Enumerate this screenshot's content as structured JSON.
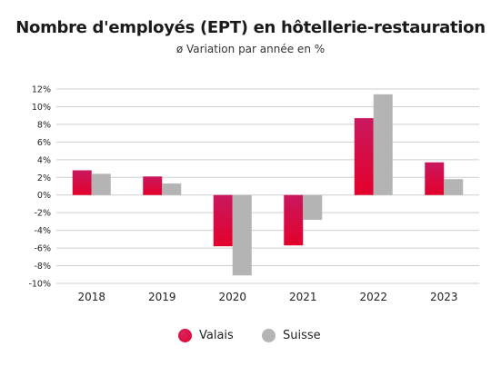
{
  "chart_data": {
    "type": "bar",
    "title": "Nombre d'employés (EPT) en hôtellerie-restauration",
    "subtitle": "ø Variation par année en %",
    "categories": [
      "2018",
      "2019",
      "2020",
      "2021",
      "2022",
      "2023"
    ],
    "series": [
      {
        "name": "Valais",
        "values": [
          2.8,
          2.1,
          -5.8,
          -5.7,
          8.7,
          3.7
        ],
        "color": "#e3002b"
      },
      {
        "name": "Suisse",
        "values": [
          2.4,
          1.3,
          -9.1,
          -2.8,
          11.4,
          1.8
        ],
        "color": "#b4b4b4"
      }
    ],
    "ylim": [
      -10,
      12
    ],
    "yticks": [
      "-10%",
      "-8%",
      "-6%",
      "-4%",
      "-2%",
      "0%",
      "2%",
      "4%",
      "6%",
      "8%",
      "10%",
      "12%"
    ],
    "ytick_values": [
      -10,
      -8,
      -6,
      -4,
      -2,
      0,
      2,
      4,
      6,
      8,
      10,
      12
    ],
    "grid": true,
    "legend_position": "bottom-center"
  }
}
